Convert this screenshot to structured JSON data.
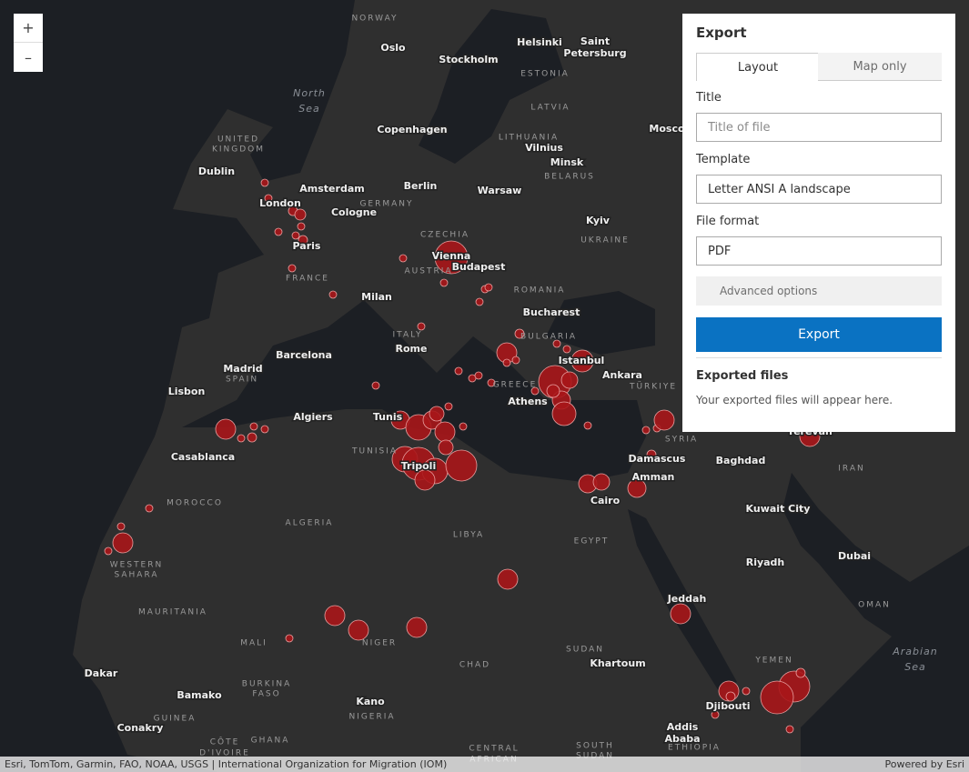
{
  "map": {
    "zoom": {
      "in": "+",
      "out": "–"
    },
    "cities": [
      "Helsinki",
      "Saint",
      "Petersburg",
      "Oslo",
      "Stockholm",
      "Copenhagen",
      "Dublin",
      "Amsterdam",
      "London",
      "Berlin",
      "Warsaw",
      "Cologne",
      "Kyiv",
      "Paris",
      "Vienna",
      "Budapest",
      "Milan",
      "Bucharest",
      "Minsk",
      "Vilnius",
      "Mosco",
      "Rome",
      "Barcelona",
      "Madrid",
      "Istanbul",
      "Ankara",
      "Lisbon",
      "Athens",
      "Algiers",
      "Tunis",
      "Tripoli",
      "Casablanca",
      "Damascus",
      "Baghdad",
      "Amman",
      "Cairo",
      "Kuwait City",
      "Riyadh",
      "Dubai",
      "Jeddah",
      "Khartoum",
      "Dakar",
      "Bamako",
      "Kano",
      "Djibouti",
      "Addis",
      "Ababa",
      "Conakry",
      "Yerevan"
    ],
    "regions": [
      "NORWAY",
      "ESTONIA",
      "LATVIA",
      "LITHUANIA",
      "BELARUS",
      "UNITED",
      "KINGDOM",
      "GERMANY",
      "CZECHIA",
      "UKRAINE",
      "AUSTRIA",
      "FRANCE",
      "ROMANIA",
      "ITALY",
      "BULGARIA",
      "SPAIN",
      "GREECE",
      "TÜRKIYE",
      "TUNISIA",
      "SYRIA",
      "IRAN",
      "MOROCCO",
      "ALGERIA",
      "LIBYA",
      "EGYPT",
      "WESTERN",
      "SAHARA",
      "OMAN",
      "MAURITANIA",
      "MALI",
      "NIGER",
      "CHAD",
      "SUDAN",
      "YEMEN",
      "BURKINA",
      "FASO",
      "GUINEA",
      "GHANA",
      "NIGERIA",
      "ETHIOPIA",
      "SOUTH",
      "SUDAN",
      "CÔTE",
      "D'IVOIRE",
      "CENTRAL",
      "AFRICAN"
    ],
    "seas": [
      "North",
      "Sea",
      "Arabian",
      "Sea"
    ]
  },
  "panel": {
    "title": "Export",
    "tabs": [
      "Layout",
      "Map only"
    ],
    "title_label": "Title",
    "title_placeholder": "Title of file",
    "template_label": "Template",
    "template_value": "Letter ANSI A landscape",
    "format_label": "File format",
    "format_value": "PDF",
    "advanced": "Advanced options",
    "button": "Export",
    "exported_heading": "Exported files",
    "exported_note": "Your exported files will appear here."
  },
  "attribution": {
    "sources": "Esri, TomTom, Garmin, FAO, NOAA, USGS | International Organization for Migration (IOM)",
    "powered": "Powered by Esri"
  }
}
